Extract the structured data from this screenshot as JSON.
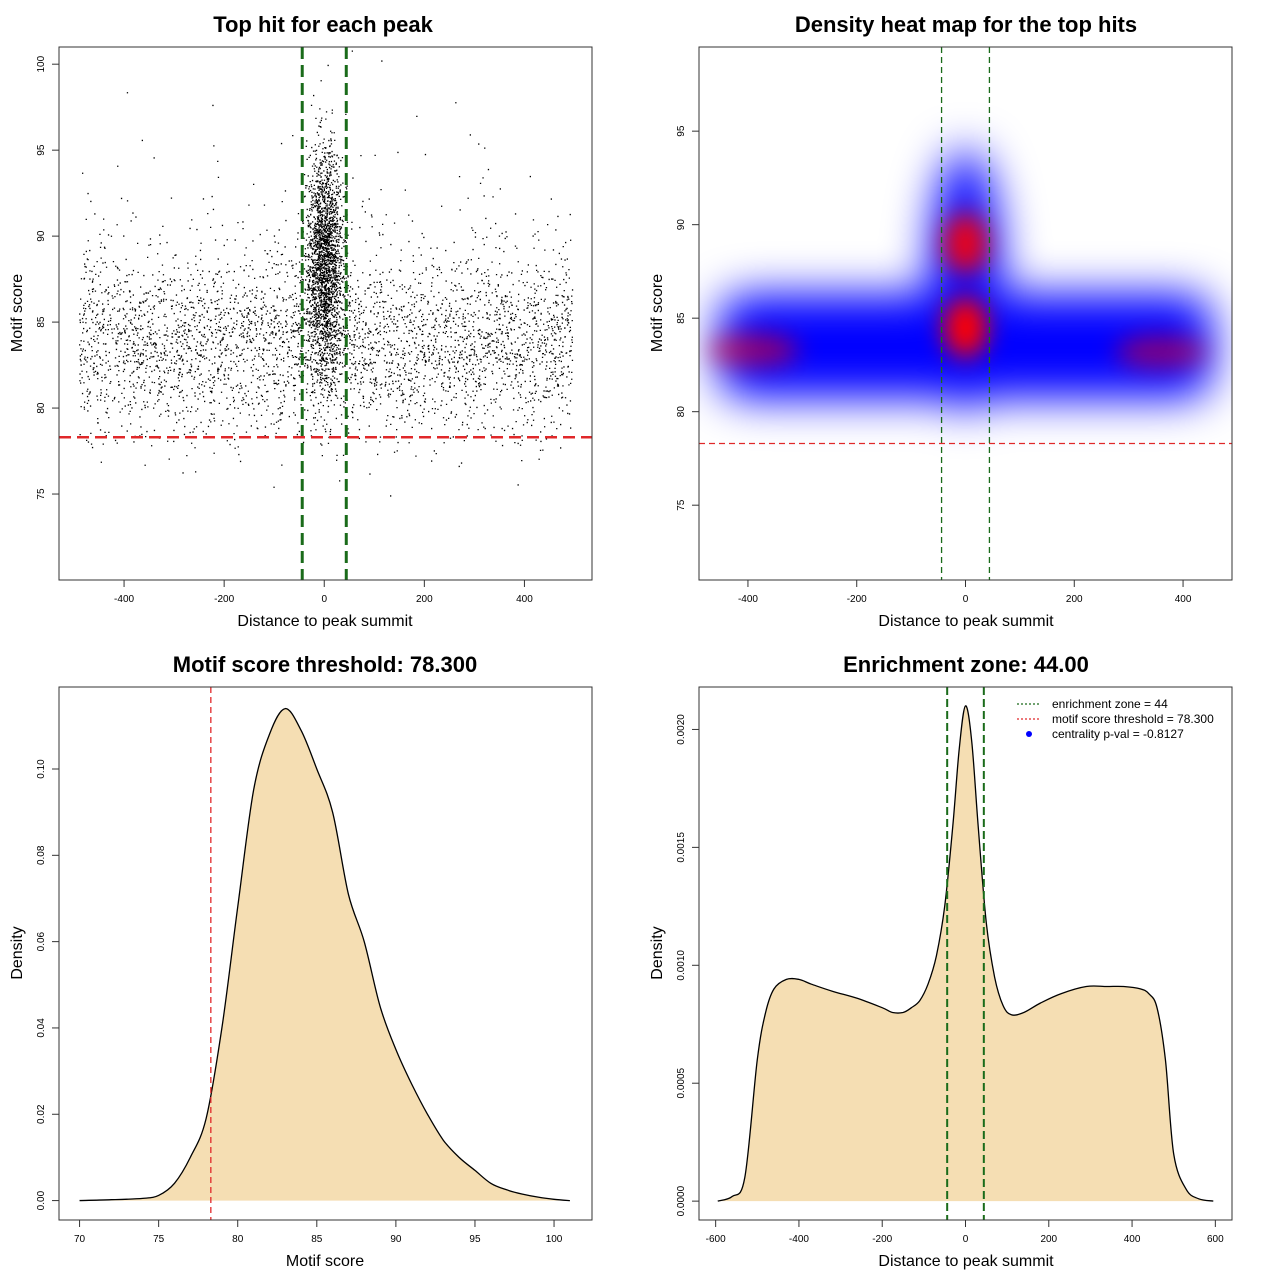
{
  "chart_data": [
    {
      "id": "scatter",
      "type": "scatter",
      "title": "Top hit for each peak",
      "xlabel": "Distance to peak summit",
      "ylabel": "Motif score",
      "xlim": [
        -530,
        535
      ],
      "ylim": [
        70,
        101
      ],
      "xticks": [
        -400,
        -200,
        0,
        200,
        400
      ],
      "yticks": [
        75,
        80,
        85,
        90,
        95,
        100
      ],
      "point_color": "#000000",
      "background_cloud": {
        "x_range": [
          -490,
          495
        ],
        "score_mean": 83.6,
        "score_sd": 2.6,
        "n_points": 9500
      },
      "central_cluster": {
        "x_center": 0,
        "x_sd": 18,
        "score_mean": 88.5,
        "score_sd": 3.2,
        "n_points": 2200
      },
      "vlines": {
        "values": [
          -44,
          44
        ],
        "color": "#1a6b1a"
      },
      "hline": {
        "value": 78.3,
        "color": "#e0282a"
      }
    },
    {
      "id": "heatmap",
      "type": "heatmap",
      "title": "Density heat map for the top hits",
      "xlabel": "Distance to peak summit",
      "ylabel": "Motif score",
      "xlim": [
        -490,
        490
      ],
      "ylim": [
        71,
        99.5
      ],
      "xticks": [
        -400,
        -200,
        0,
        200,
        400
      ],
      "yticks": [
        75,
        80,
        85,
        90,
        95
      ],
      "colors": [
        "#ffffff",
        "#0000ff",
        "#ff0000"
      ],
      "band": {
        "x_range": [
          -455,
          455
        ],
        "center_score": 83.5,
        "half_height": 2.8
      },
      "peaks": [
        {
          "x": 0,
          "score": 84.5,
          "intensity": 1.0
        },
        {
          "x": 0,
          "score": 89,
          "intensity": 0.9
        },
        {
          "x": -390,
          "score": 83.3,
          "intensity": 0.55
        },
        {
          "x": 360,
          "score": 83.2,
          "intensity": 0.5
        }
      ],
      "vlines": {
        "values": [
          -44,
          44
        ],
        "color": "#1a6b1a"
      },
      "hline": {
        "value": 78.3,
        "color": "#e0282a"
      }
    },
    {
      "id": "score_density",
      "type": "area",
      "title": "Motif score threshold: 78.300",
      "xlabel": "Motif score",
      "ylabel": "Density",
      "xlim": [
        68.7,
        102.4
      ],
      "ylim": [
        -0.0045,
        0.119
      ],
      "xticks": [
        70,
        75,
        80,
        85,
        90,
        95,
        100
      ],
      "yticks": [
        0.0,
        0.02,
        0.04,
        0.06,
        0.08,
        0.1
      ],
      "ytick_labels": [
        "0.00",
        "0.02",
        "0.04",
        "0.06",
        "0.08",
        "0.10"
      ],
      "fill": "#f5deb3",
      "x": [
        70,
        72,
        74,
        75,
        76,
        77,
        78,
        79,
        80,
        81,
        82,
        83,
        84,
        85,
        86,
        87,
        88,
        89,
        90,
        91,
        92,
        93,
        94,
        95,
        96,
        97,
        98,
        99,
        100,
        101
      ],
      "y": [
        0.0,
        0.0002,
        0.0005,
        0.0012,
        0.004,
        0.01,
        0.019,
        0.04,
        0.068,
        0.095,
        0.108,
        0.114,
        0.109,
        0.1,
        0.09,
        0.071,
        0.06,
        0.045,
        0.035,
        0.027,
        0.02,
        0.014,
        0.01,
        0.007,
        0.004,
        0.0025,
        0.0015,
        0.0008,
        0.0003,
        0.0
      ],
      "vline": {
        "value": 78.3,
        "color": "#e0282a"
      }
    },
    {
      "id": "distance_density",
      "type": "area",
      "title": "Enrichment zone: 44.00",
      "xlabel": "Distance to peak summit",
      "ylabel": "Density",
      "xlim": [
        -640,
        640
      ],
      "ylim": [
        -8e-05,
        0.00218
      ],
      "xticks": [
        -600,
        -400,
        -200,
        0,
        200,
        400,
        600
      ],
      "yticks": [
        0.0,
        0.0005,
        0.001,
        0.0015,
        0.002
      ],
      "ytick_labels": [
        "0.0000",
        "0.0005",
        "0.0010",
        "0.0015",
        "0.0020"
      ],
      "fill": "#f5deb3",
      "x": [
        -595,
        -560,
        -530,
        -500,
        -480,
        -460,
        -430,
        -400,
        -370,
        -320,
        -260,
        -200,
        -175,
        -150,
        -130,
        -110,
        -90,
        -70,
        -50,
        -30,
        -15,
        0,
        15,
        30,
        50,
        70,
        90,
        110,
        140,
        180,
        230,
        290,
        340,
        380,
        420,
        440,
        460,
        480,
        500,
        530,
        560,
        595
      ],
      "y": [
        0.0,
        2e-05,
        0.0001,
        0.0006,
        0.0008,
        0.0009,
        0.00094,
        0.00094,
        0.00092,
        0.00089,
        0.00086,
        0.00082,
        0.0008,
        0.0008,
        0.00082,
        0.00085,
        0.00092,
        0.00104,
        0.00125,
        0.0016,
        0.00192,
        0.0021,
        0.00195,
        0.0016,
        0.00118,
        0.00095,
        0.00083,
        0.00079,
        0.0008,
        0.00084,
        0.00088,
        0.00091,
        0.00091,
        0.00091,
        0.0009,
        0.00088,
        0.00082,
        0.0006,
        0.0002,
        5e-05,
        1e-05,
        0.0
      ],
      "vlines": {
        "values": [
          -44,
          44
        ],
        "color": "#1a6b1a"
      },
      "legend": {
        "position": "top-right",
        "entries": [
          {
            "label": "enrichment zone = 44",
            "color": "#1a6b1a",
            "style": "dotted"
          },
          {
            "label": "motif score threshold = 78.300",
            "color": "#e0282a",
            "style": "dotted"
          },
          {
            "label": "centrality p-val = -0.8127",
            "color": "#0000ff",
            "style": "point"
          }
        ]
      }
    }
  ]
}
